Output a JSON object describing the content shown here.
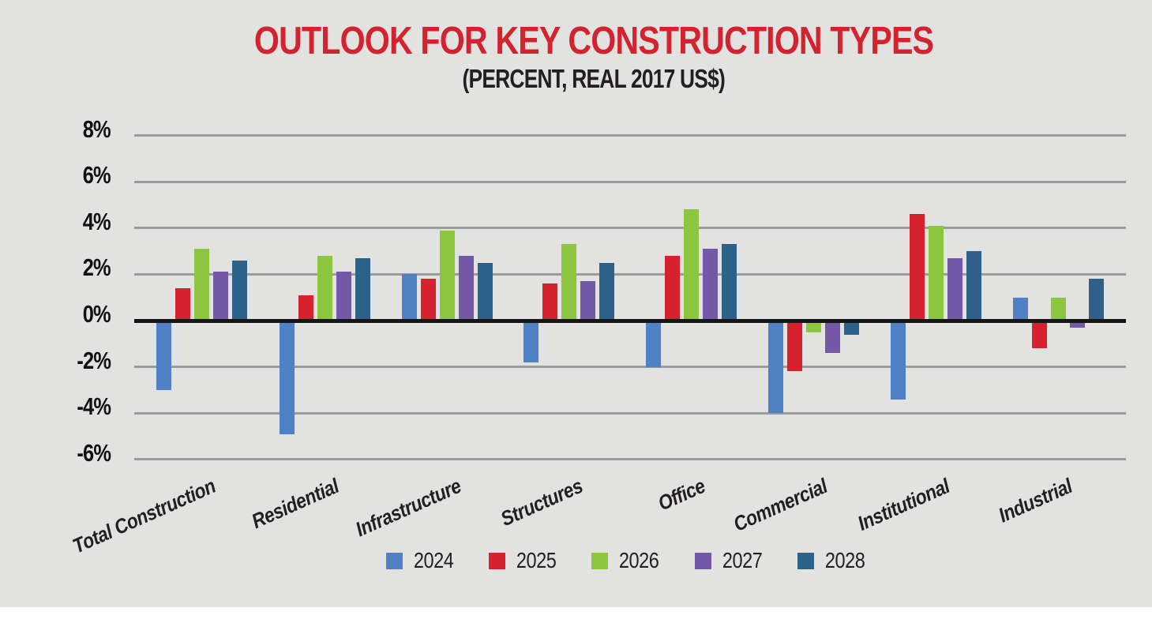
{
  "header": {
    "title": "OUTLOOK FOR KEY CONSTRUCTION TYPES",
    "subtitle": "(PERCENT, REAL 2017 US$)",
    "title_color": "#d2232f"
  },
  "chart_data": {
    "type": "bar",
    "title": "OUTLOOK FOR KEY CONSTRUCTION TYPES",
    "subtitle": "(PERCENT, REAL 2017 US$)",
    "categories": [
      "Total Construction",
      "Residential",
      "Infrastructure",
      "Structures",
      "Office",
      "Commercial",
      "Institutional",
      "Industrial"
    ],
    "series": [
      {
        "name": "2024",
        "color": "#5081c4",
        "values": [
          -3.0,
          -4.9,
          2.0,
          -1.8,
          -2.0,
          -4.0,
          -3.4,
          1.0
        ]
      },
      {
        "name": "2025",
        "color": "#d6212f",
        "values": [
          1.4,
          1.1,
          1.8,
          1.6,
          2.8,
          -2.2,
          4.6,
          -1.2
        ]
      },
      {
        "name": "2026",
        "color": "#8cc540",
        "values": [
          3.1,
          2.8,
          3.9,
          3.3,
          4.8,
          -0.5,
          4.1,
          1.0
        ]
      },
      {
        "name": "2027",
        "color": "#7359a8",
        "values": [
          2.1,
          2.1,
          2.8,
          1.7,
          3.1,
          -1.4,
          2.7,
          -0.3
        ]
      },
      {
        "name": "2028",
        "color": "#2d6189",
        "values": [
          2.6,
          2.7,
          2.5,
          2.5,
          3.3,
          -0.6,
          3.0,
          1.8
        ]
      }
    ],
    "xlabel": "",
    "ylabel": "",
    "y_ticks": [
      "8%",
      "6%",
      "4%",
      "2%",
      "0%",
      "-2%",
      "-4%",
      "-6%"
    ],
    "y_tick_values": [
      8,
      6,
      4,
      2,
      0,
      -2,
      -4,
      -6
    ],
    "ylim": [
      -6,
      8
    ],
    "grid": true,
    "legend_position": "bottom",
    "background_color": "#e2e3e1",
    "gridline_color": "#9a9b9a",
    "zero_line_color": "#161616"
  }
}
